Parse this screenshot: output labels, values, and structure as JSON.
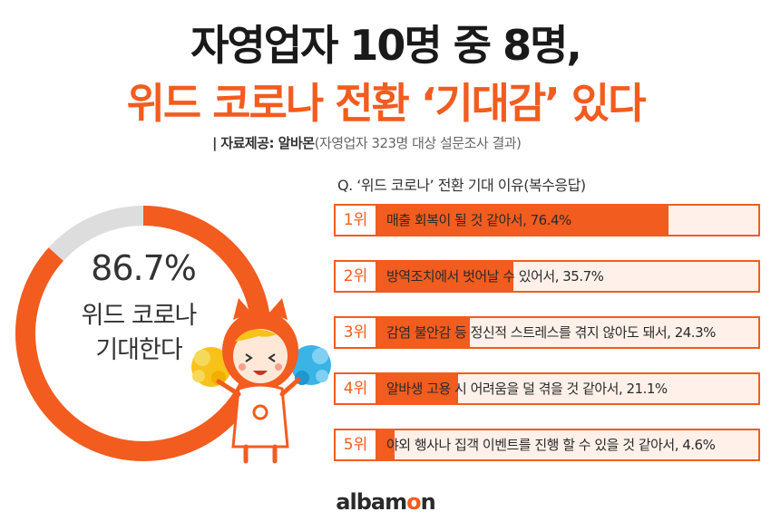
{
  "header": {
    "title_line1": "자영업자 10명 중 8명,",
    "title_line2": "위드 코로나 전환 ‘기대감’ 있다",
    "source_bar": "|",
    "source_label": "자료제공: 알바몬",
    "source_note": "(자영업자 323명 대상 설문조사 결과)"
  },
  "colors": {
    "accent": "#f25c1f",
    "track": "#dddddd",
    "bar_bg": "#fff1ea"
  },
  "donut": {
    "percent_text": "86.7%",
    "line1": "위드 코로나",
    "line2": "기대한다"
  },
  "chart_data": [
    {
      "type": "pie",
      "categories": [
        "위드 코로나 기대한다",
        ""
      ],
      "values": [
        86.7,
        13.3
      ],
      "unit": "%"
    },
    {
      "type": "bar",
      "title": "Q. ‘위드 코로나’ 전환 기대 이유(복수응답)",
      "orientation": "horizontal",
      "ranks": [
        "1위",
        "2위",
        "3위",
        "4위",
        "5위"
      ],
      "categories": [
        "매출 회복이 될 것 같아서",
        "방역조치에서 벗어날 수 있어서",
        "감염 불안감 등 정신적 스트레스를 겪지 않아도 돼서",
        "알바생 고용 시 어려움을 덜 겪을 것 같아서",
        "야외 행사나 집객 이벤트를 진행 할 수 있을 것 같아서"
      ],
      "values": [
        76.4,
        35.7,
        24.3,
        21.1,
        4.6
      ],
      "labels": [
        "매출 회복이 될 것 같아서, 76.4%",
        "방역조치에서 벗어날 수 있어서, 35.7%",
        "감염 불안감 등 정신적 스트레스를 겪지 않아도 돼서, 24.3%",
        "알바생 고용 시 어려움을 덜 겪을 것 같아서, 21.1%",
        "야외 행사나 집객 이벤트를 진행 할 수 있을 것 같아서, 4.6%"
      ],
      "xlim": [
        0,
        100
      ]
    }
  ],
  "logo": {
    "text_a": "albam",
    "text_o": "o",
    "text_n": "n"
  }
}
